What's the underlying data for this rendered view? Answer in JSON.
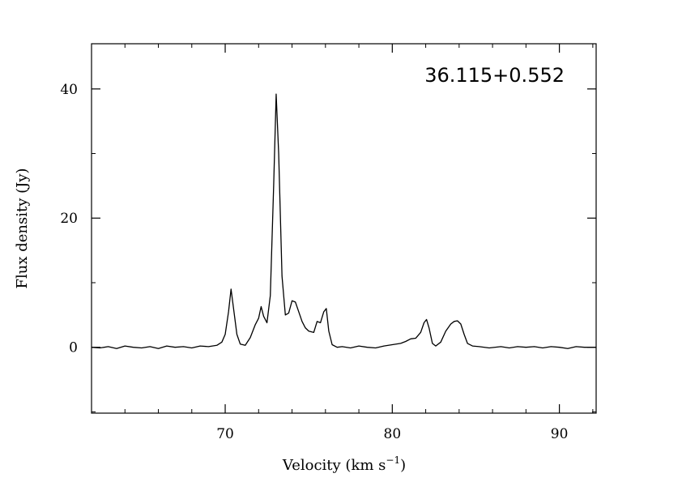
{
  "chart_data": {
    "type": "line",
    "title": "36.115+0.552",
    "xlabel": "Velocity (km s",
    "xlabel_superscript": "−1",
    "xlabel_suffix": ")",
    "ylabel": "Flux density (Jy)",
    "xlim": [
      62.0,
      92.2
    ],
    "ylim": [
      -10.2,
      47.0
    ],
    "x_major_ticks": [
      70,
      80,
      90
    ],
    "x_tick_labels": [
      "70",
      "80",
      "90"
    ],
    "y_major_ticks": [
      0,
      20,
      40
    ],
    "y_tick_labels": [
      "0",
      "20",
      "40"
    ],
    "grid": false,
    "legend": "none",
    "line_color": "#000000",
    "series": [
      {
        "x": [
          62.0,
          62.5,
          63.0,
          63.5,
          64.0,
          64.5,
          65.0,
          65.5,
          66.0,
          66.5,
          67.0,
          67.5,
          68.0,
          68.5,
          69.0,
          69.5,
          69.8,
          70.0,
          70.2,
          70.35,
          70.5,
          70.7,
          70.9,
          71.2,
          71.5,
          71.8,
          72.0,
          72.15,
          72.3,
          72.5,
          72.7,
          72.9,
          73.05,
          73.2,
          73.4,
          73.6,
          73.8,
          74.0,
          74.2,
          74.4,
          74.6,
          74.8,
          75.0,
          75.3,
          75.5,
          75.7,
          75.9,
          76.05,
          76.2,
          76.4,
          76.7,
          77.0,
          77.5,
          78.0,
          78.5,
          79.0,
          79.5,
          80.0,
          80.5,
          80.8,
          81.1,
          81.4,
          81.7,
          81.9,
          82.05,
          82.2,
          82.4,
          82.6,
          82.9,
          83.2,
          83.5,
          83.7,
          83.9,
          84.1,
          84.3,
          84.5,
          84.8,
          85.2,
          85.8,
          86.5,
          87.0,
          87.5,
          88.0,
          88.5,
          89.0,
          89.5,
          90.0,
          90.5,
          91.0,
          91.5,
          92.2
        ],
        "y": [
          0.0,
          -0.1,
          0.1,
          -0.2,
          0.2,
          0.0,
          -0.1,
          0.1,
          -0.2,
          0.2,
          0.0,
          0.1,
          -0.1,
          0.2,
          0.1,
          0.3,
          0.8,
          2.0,
          5.5,
          9.0,
          6.0,
          2.0,
          0.5,
          0.3,
          1.5,
          3.5,
          4.5,
          6.3,
          4.8,
          3.8,
          8.0,
          25.0,
          39.2,
          30.0,
          11.0,
          5.0,
          5.3,
          7.2,
          7.0,
          5.5,
          4.0,
          3.0,
          2.5,
          2.3,
          4.0,
          3.8,
          5.5,
          6.0,
          2.5,
          0.4,
          0.0,
          0.1,
          -0.1,
          0.2,
          0.0,
          -0.1,
          0.2,
          0.4,
          0.6,
          0.9,
          1.3,
          1.4,
          2.3,
          3.8,
          4.3,
          3.0,
          0.6,
          0.2,
          0.8,
          2.5,
          3.6,
          4.0,
          4.1,
          3.6,
          2.0,
          0.6,
          0.2,
          0.1,
          -0.1,
          0.1,
          -0.1,
          0.1,
          0.0,
          0.1,
          -0.1,
          0.1,
          0.0,
          -0.2,
          0.1,
          0.0,
          0.0
        ]
      }
    ]
  }
}
